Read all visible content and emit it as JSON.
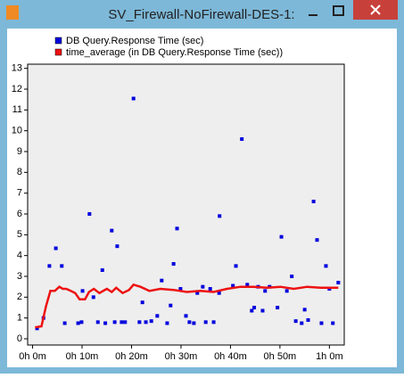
{
  "window": {
    "title": "SV_Firewall-NoFirewall-DES-1:"
  },
  "chart_data": {
    "type": "scatter",
    "legend": "top-left",
    "series": [
      {
        "name": "DB Query.Response Time (sec)",
        "color": "#0000dd",
        "type": "scatter",
        "x": [
          0.9,
          2.2,
          3.4,
          4.7,
          5.9,
          6.5,
          10.1,
          9.2,
          9.9,
          11.5,
          12.3,
          13.2,
          14.1,
          14.7,
          16.0,
          16.6,
          17.1,
          18.0,
          18.7,
          20.4,
          21.6,
          22.2,
          22.9,
          24.0,
          25.2,
          26.1,
          27.2,
          27.9,
          28.5,
          29.2,
          29.9,
          31.0,
          31.7,
          32.6,
          33.3,
          34.4,
          35.0,
          35.9,
          36.6,
          37.7,
          37.8,
          40.5,
          41.1,
          42.3,
          43.4,
          44.3,
          44.8,
          45.6,
          46.5,
          47.0,
          47.9,
          49.5,
          50.3,
          51.4,
          52.4,
          53.2,
          54.4,
          55.0,
          55.7,
          56.8,
          57.5,
          58.4,
          59.3,
          60.0,
          60.7,
          61.8
        ],
        "values": [
          0.5,
          1.0,
          3.5,
          4.35,
          3.5,
          0.75,
          2.3,
          0.75,
          0.8,
          6.0,
          2.0,
          0.8,
          3.3,
          0.75,
          5.2,
          0.8,
          4.45,
          0.8,
          0.8,
          11.55,
          0.8,
          1.75,
          0.8,
          0.85,
          1.1,
          2.8,
          0.75,
          1.6,
          3.6,
          5.3,
          2.4,
          1.1,
          0.8,
          0.75,
          2.2,
          2.5,
          0.8,
          2.4,
          0.8,
          2.2,
          5.9,
          2.55,
          3.5,
          9.6,
          2.6,
          1.35,
          1.5,
          2.5,
          1.35,
          2.3,
          2.5,
          1.5,
          4.9,
          2.3,
          3.0,
          0.85,
          0.75,
          1.4,
          0.9,
          6.6,
          4.75,
          0.75,
          3.5,
          2.4,
          0.75,
          2.7
        ]
      },
      {
        "name": "time_average (in DB Query.Response Time (sec))",
        "color": "#ee1111",
        "type": "line",
        "x": [
          0.5,
          1.8,
          2.7,
          3.6,
          4.5,
          5.4,
          6.1,
          6.8,
          7.7,
          8.6,
          9.5,
          10.6,
          11.4,
          12.4,
          13.5,
          15.0,
          16.0,
          16.9,
          18.2,
          19.5,
          20.4,
          21.8,
          23.6,
          25.8,
          28.5,
          31.2,
          33.9,
          36.6,
          39.3,
          42.0,
          44.7,
          47.4,
          50.1,
          52.8,
          55.5,
          58.2,
          61.8
        ],
        "values": [
          0.55,
          0.6,
          1.55,
          2.3,
          2.3,
          2.5,
          2.4,
          2.4,
          2.3,
          2.2,
          1.9,
          1.9,
          2.25,
          2.4,
          2.2,
          2.4,
          2.25,
          2.45,
          2.2,
          2.35,
          2.6,
          2.5,
          2.3,
          2.4,
          2.35,
          2.25,
          2.3,
          2.25,
          2.4,
          2.5,
          2.5,
          2.45,
          2.5,
          2.4,
          2.5,
          2.45,
          2.45
        ]
      }
    ],
    "xlim": [
      -1,
      63
    ],
    "ylim": [
      -0.3,
      13.2
    ],
    "xticks": [
      {
        "value": 0,
        "label": "0h 0m"
      },
      {
        "value": 10,
        "label": "0h 10m"
      },
      {
        "value": 20,
        "label": "0h 20m"
      },
      {
        "value": 30,
        "label": "0h 30m"
      },
      {
        "value": 40,
        "label": "0h 40m"
      },
      {
        "value": 50,
        "label": "0h 50m"
      },
      {
        "value": 60,
        "label": "1h 0m"
      }
    ],
    "yticks": [
      0,
      1,
      2,
      3,
      4,
      5,
      6,
      7,
      8,
      9,
      10,
      11,
      12,
      13
    ]
  }
}
